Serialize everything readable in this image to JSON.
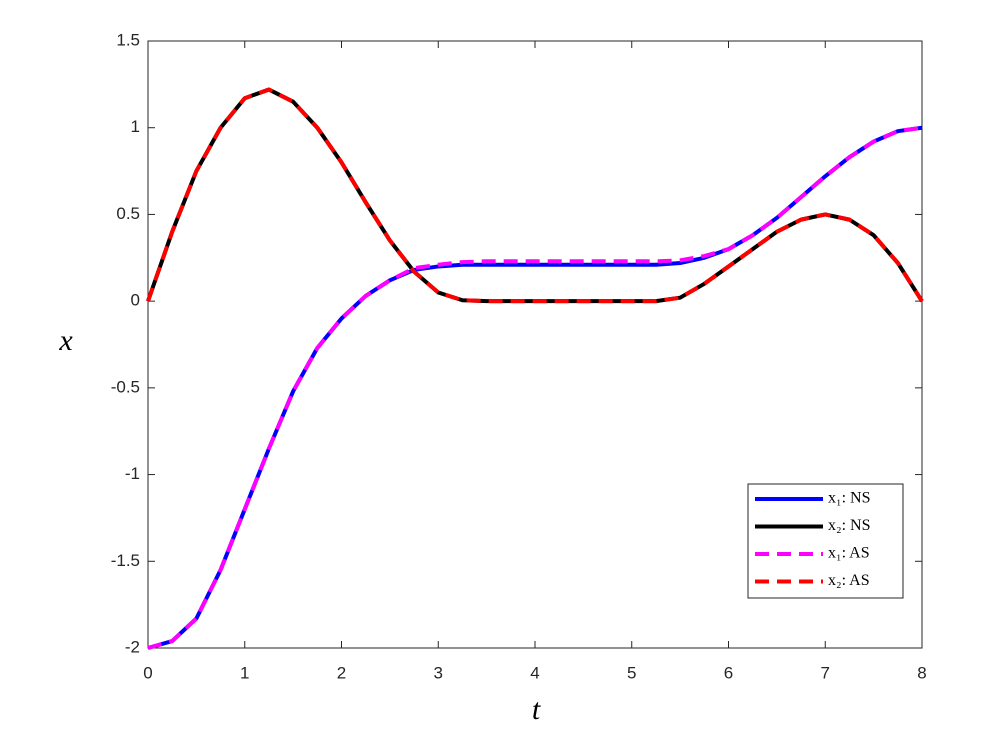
{
  "chart_data": {
    "type": "line",
    "xlabel": "t",
    "ylabel": "x",
    "x": [
      0,
      0.25,
      0.5,
      0.75,
      1,
      1.25,
      1.5,
      1.75,
      2,
      2.25,
      2.5,
      2.75,
      3,
      3.25,
      3.5,
      3.75,
      4,
      4.25,
      4.5,
      4.75,
      5,
      5.25,
      5.5,
      5.75,
      6,
      6.25,
      6.5,
      6.75,
      7,
      7.25,
      7.5,
      7.75,
      8
    ],
    "series": [
      {
        "name": "x₁: NS",
        "color": "#0000ff",
        "dash": false,
        "values": [
          -2,
          -1.96,
          -1.83,
          -1.55,
          -1.2,
          -0.85,
          -0.52,
          -0.27,
          -0.1,
          0.03,
          0.12,
          0.18,
          0.2,
          0.21,
          0.21,
          0.21,
          0.21,
          0.21,
          0.21,
          0.21,
          0.21,
          0.21,
          0.22,
          0.25,
          0.3,
          0.38,
          0.48,
          0.6,
          0.72,
          0.83,
          0.92,
          0.98,
          1
        ]
      },
      {
        "name": "x₂: NS",
        "color": "#000000",
        "dash": false,
        "values": [
          0,
          0.4,
          0.75,
          1,
          1.17,
          1.22,
          1.15,
          1,
          0.8,
          0.57,
          0.35,
          0.17,
          0.05,
          0.005,
          0,
          0,
          0,
          0,
          0,
          0,
          0,
          0,
          0.02,
          0.1,
          0.2,
          0.3,
          0.4,
          0.47,
          0.5,
          0.47,
          0.38,
          0.22,
          0
        ]
      },
      {
        "name": "x₁: AS",
        "color": "#ff00ff",
        "dash": true,
        "values": [
          -2,
          -1.96,
          -1.83,
          -1.55,
          -1.2,
          -0.85,
          -0.52,
          -0.27,
          -0.1,
          0.03,
          0.12,
          0.19,
          0.21,
          0.225,
          0.23,
          0.23,
          0.23,
          0.23,
          0.23,
          0.23,
          0.23,
          0.23,
          0.235,
          0.26,
          0.3,
          0.38,
          0.48,
          0.6,
          0.72,
          0.83,
          0.92,
          0.98,
          1
        ]
      },
      {
        "name": "x₂: AS",
        "color": "#ff0000",
        "dash": true,
        "values": [
          0,
          0.4,
          0.75,
          1,
          1.17,
          1.22,
          1.15,
          1,
          0.8,
          0.57,
          0.35,
          0.17,
          0.05,
          0.005,
          0,
          0,
          0,
          0,
          0,
          0,
          0,
          0,
          0.02,
          0.1,
          0.2,
          0.3,
          0.4,
          0.47,
          0.5,
          0.47,
          0.38,
          0.22,
          0
        ]
      }
    ],
    "xlim": [
      0,
      8
    ],
    "xticks": [
      0,
      1,
      2,
      3,
      4,
      5,
      6,
      7,
      8
    ],
    "ylim": [
      -2,
      1.5
    ],
    "yticks": [
      -2,
      -1.5,
      -1,
      -0.5,
      0,
      0.5,
      1,
      1.5
    ],
    "grid": false,
    "legend": "lower right"
  }
}
